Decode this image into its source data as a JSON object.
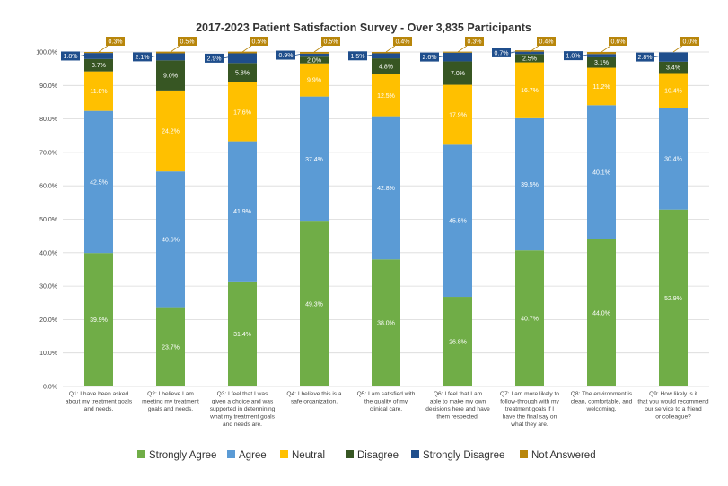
{
  "chart_data": {
    "type": "bar",
    "stacked": true,
    "title": "2017-2023 Patient Satisfaction Survey - Over 3,835 Participants",
    "xlabel": "",
    "ylabel": "",
    "ylim": [
      0,
      100
    ],
    "yticks": [
      "0.0%",
      "10.0%",
      "20.0%",
      "30.0%",
      "40.0%",
      "50.0%",
      "60.0%",
      "70.0%",
      "80.0%",
      "90.0%",
      "100.0%"
    ],
    "grid": true,
    "legend_position": "bottom",
    "categories": [
      "Q1: I have been asked about my treatment goals and needs.",
      "Q2: I believe I am meeting my treatment goals and needs.",
      "Q3: I feel that I was given a choice and was supported in determining what my treatment goals and needs are.",
      "Q4: I believe this is a safe organization.",
      "Q5: I am satisfied with the quality of my clinical care.",
      "Q6: I feel that I am able to make my own decisions here and have them respected.",
      "Q7: I am more likely to follow-through with my treatment goals if I have the final say on what they are.",
      "Q8: The environment is clean, comfortable, and welcoming.",
      "Q9: How likely is it that you would recommend our service to a friend or colleague?"
    ],
    "series": [
      {
        "name": "Strongly Agree",
        "color": "#70ad47",
        "values": [
          39.9,
          23.7,
          31.4,
          49.3,
          38.0,
          26.8,
          40.7,
          44.0,
          52.9
        ]
      },
      {
        "name": "Agree",
        "color": "#5b9bd5",
        "values": [
          42.5,
          40.6,
          41.9,
          37.4,
          42.8,
          45.5,
          39.5,
          40.1,
          30.4
        ]
      },
      {
        "name": "Neutral",
        "color": "#ffc000",
        "values": [
          11.8,
          24.2,
          17.6,
          9.9,
          12.5,
          17.9,
          16.7,
          11.2,
          10.4
        ]
      },
      {
        "name": "Disagree",
        "color": "#375623",
        "values": [
          3.7,
          9.0,
          5.8,
          2.0,
          4.8,
          7.0,
          2.5,
          3.1,
          3.4
        ]
      },
      {
        "name": "Strongly Disagree",
        "color": "#1f4e8c",
        "values": [
          1.8,
          2.1,
          2.9,
          0.9,
          1.5,
          2.6,
          0.7,
          1.0,
          2.8
        ]
      },
      {
        "name": "Not Answered",
        "color": "#b8860b",
        "values": [
          0.3,
          0.5,
          0.5,
          0.5,
          0.4,
          0.3,
          0.4,
          0.6,
          0.0
        ]
      }
    ]
  }
}
